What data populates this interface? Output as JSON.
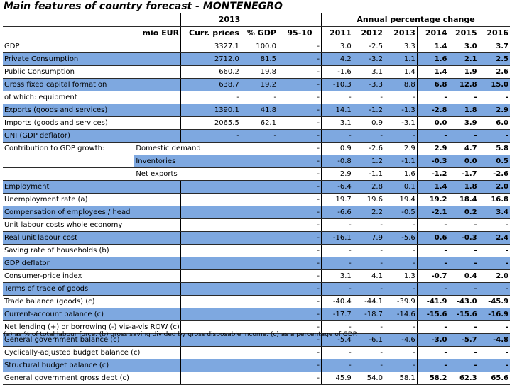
{
  "title": "Main features of country forecast - MONTENEGRO",
  "header": {
    "year_2013": "2013",
    "annual_change": "Annual percentage change",
    "mio_eur": "mio EUR",
    "curr_prices": "Curr. prices",
    "pct_gdp": "% GDP",
    "period": "95-10",
    "years": [
      "2011",
      "2012",
      "2013",
      "2014",
      "2015",
      "2016"
    ]
  },
  "rows": [
    {
      "label": "GDP",
      "sub": "",
      "curr": "3327.1",
      "pct": "100.0",
      "p": "-",
      "v": [
        "3.0",
        "-2.5",
        "3.3",
        "1.4",
        "3.0",
        "3.7"
      ],
      "shade": false
    },
    {
      "label": "Private Consumption",
      "sub": "",
      "curr": "2712.0",
      "pct": "81.5",
      "p": "-",
      "v": [
        "4.2",
        "-3.2",
        "1.1",
        "1.6",
        "2.1",
        "2.5"
      ],
      "shade": true
    },
    {
      "label": "Public Consumption",
      "sub": "",
      "curr": "660.2",
      "pct": "19.8",
      "p": "-",
      "v": [
        "-1.6",
        "3.1",
        "1.4",
        "1.4",
        "1.9",
        "2.6"
      ],
      "shade": false
    },
    {
      "label": "Gross fixed capital formation",
      "sub": "",
      "curr": "638.7",
      "pct": "19.2",
      "p": "-",
      "v": [
        "-10.3",
        "-3.3",
        "8.8",
        "6.8",
        "12.8",
        "15.0"
      ],
      "shade": true
    },
    {
      "label": "of which: equipment",
      "sub": "",
      "curr": "-",
      "pct": "-",
      "p": "-",
      "v": [
        "-",
        "-",
        "-",
        "-",
        "-",
        "-"
      ],
      "shade": false
    },
    {
      "label": "Exports (goods and services)",
      "sub": "",
      "curr": "1390.1",
      "pct": "41.8",
      "p": "-",
      "v": [
        "14.1",
        "-1.2",
        "-1.3",
        "-2.8",
        "1.8",
        "2.9"
      ],
      "shade": true
    },
    {
      "label": "Imports (goods and services)",
      "sub": "",
      "curr": "2065.5",
      "pct": "62.1",
      "p": "-",
      "v": [
        "3.1",
        "0.9",
        "-3.1",
        "0.0",
        "3.9",
        "6.0"
      ],
      "shade": false
    },
    {
      "label": "GNI (GDP deflator)",
      "sub": "",
      "curr": "-",
      "pct": "-",
      "p": "-",
      "v": [
        "-",
        "-",
        "-",
        "-",
        "-",
        "-"
      ],
      "shade": true
    },
    {
      "label": "Contribution to GDP growth:",
      "sub": "Domestic demand",
      "curr": "",
      "pct": "",
      "p": "-",
      "v": [
        "0.9",
        "-2.6",
        "2.9",
        "2.9",
        "4.7",
        "5.8"
      ],
      "shade": false
    },
    {
      "label": "",
      "sub": "Inventories",
      "curr": "",
      "pct": "",
      "p": "-",
      "v": [
        "-0.8",
        "1.2",
        "-1.1",
        "-0.3",
        "0.0",
        "0.5"
      ],
      "shade": true
    },
    {
      "label": "",
      "sub": "Net exports",
      "curr": "",
      "pct": "",
      "p": "-",
      "v": [
        "2.9",
        "-1.1",
        "1.6",
        "-1.2",
        "-1.7",
        "-2.6"
      ],
      "shade": false
    },
    {
      "label": "Employment",
      "sub": "",
      "curr": "",
      "pct": "",
      "p": "-",
      "v": [
        "-6.4",
        "2.8",
        "0.1",
        "1.4",
        "1.8",
        "2.0"
      ],
      "shade": true
    },
    {
      "label": "Unemployment rate (a)",
      "sub": "",
      "curr": "",
      "pct": "",
      "p": "-",
      "v": [
        "19.7",
        "19.6",
        "19.4",
        "19.2",
        "18.4",
        "16.8"
      ],
      "shade": false
    },
    {
      "label": "Compensation of employees / head",
      "sub": "",
      "curr": "",
      "pct": "",
      "p": "-",
      "v": [
        "-6.6",
        "2.2",
        "-0.5",
        "-2.1",
        "0.2",
        "3.4"
      ],
      "shade": true
    },
    {
      "label": "Unit labour costs whole economy",
      "sub": "",
      "curr": "",
      "pct": "",
      "p": "-",
      "v": [
        "-",
        "-",
        "-",
        "-",
        "-",
        "-"
      ],
      "shade": false
    },
    {
      "label": "Real unit labour cost",
      "sub": "",
      "curr": "",
      "pct": "",
      "p": "-",
      "v": [
        "-16.1",
        "7.9",
        "-5.6",
        "0.6",
        "-0.3",
        "2.4"
      ],
      "shade": true
    },
    {
      "label": "Saving rate of households (b)",
      "sub": "",
      "curr": "",
      "pct": "",
      "p": "-",
      "v": [
        "-",
        "-",
        "-",
        "-",
        "-",
        "-"
      ],
      "shade": false
    },
    {
      "label": "GDP deflator",
      "sub": "",
      "curr": "",
      "pct": "",
      "p": "-",
      "v": [
        "-",
        "-",
        "-",
        "-",
        "-",
        "-"
      ],
      "shade": true
    },
    {
      "label": "Consumer-price index",
      "sub": "",
      "curr": "",
      "pct": "",
      "p": "-",
      "v": [
        "3.1",
        "4.1",
        "1.3",
        "-0.7",
        "0.4",
        "2.0"
      ],
      "shade": false
    },
    {
      "label": "Terms of trade of goods",
      "sub": "",
      "curr": "",
      "pct": "",
      "p": "-",
      "v": [
        "-",
        "-",
        "-",
        "-",
        "-",
        "-"
      ],
      "shade": true
    },
    {
      "label": "Trade balance (goods) (c)",
      "sub": "",
      "curr": "",
      "pct": "",
      "p": "-",
      "v": [
        "-40.4",
        "-44.1",
        "-39.9",
        "-41.9",
        "-43.0",
        "-45.9"
      ],
      "shade": false
    },
    {
      "label": "Current-account balance (c)",
      "sub": "",
      "curr": "",
      "pct": "",
      "p": "-",
      "v": [
        "-17.7",
        "-18.7",
        "-14.6",
        "-15.6",
        "-15.6",
        "-16.9"
      ],
      "shade": true
    },
    {
      "label": "Net lending (+) or borrowing (-) vis-a-vis ROW (c)",
      "sub": "",
      "curr": "",
      "pct": "",
      "p": "-",
      "v": [
        "-",
        "-",
        "-",
        "-",
        "-",
        "-"
      ],
      "shade": false
    },
    {
      "label": "General government balance (c)",
      "sub": "",
      "curr": "",
      "pct": "",
      "p": "-",
      "v": [
        "-5.4",
        "-6.1",
        "-4.6",
        "-3.0",
        "-5.7",
        "-4.8"
      ],
      "shade": true
    },
    {
      "label": "Cyclically-adjusted budget balance (c)",
      "sub": "",
      "curr": "",
      "pct": "",
      "p": "-",
      "v": [
        "-",
        "-",
        "-",
        "-",
        "-",
        "-"
      ],
      "shade": false
    },
    {
      "label": "Structural budget balance (c)",
      "sub": "",
      "curr": "",
      "pct": "",
      "p": "-",
      "v": [
        "-",
        "-",
        "-",
        "-",
        "-",
        "-"
      ],
      "shade": true
    },
    {
      "label": "General government gross debt (c)",
      "sub": "",
      "curr": "",
      "pct": "",
      "p": "-",
      "v": [
        "45.9",
        "54.0",
        "58.1",
        "58.2",
        "62.3",
        "65.6"
      ],
      "shade": false
    }
  ],
  "footnote": "(a) as % of total labour force. (b) gross saving divided by gross disposable income. (c) as a percentage of GDP.",
  "colors": {
    "shade": "#7ea8e0"
  }
}
